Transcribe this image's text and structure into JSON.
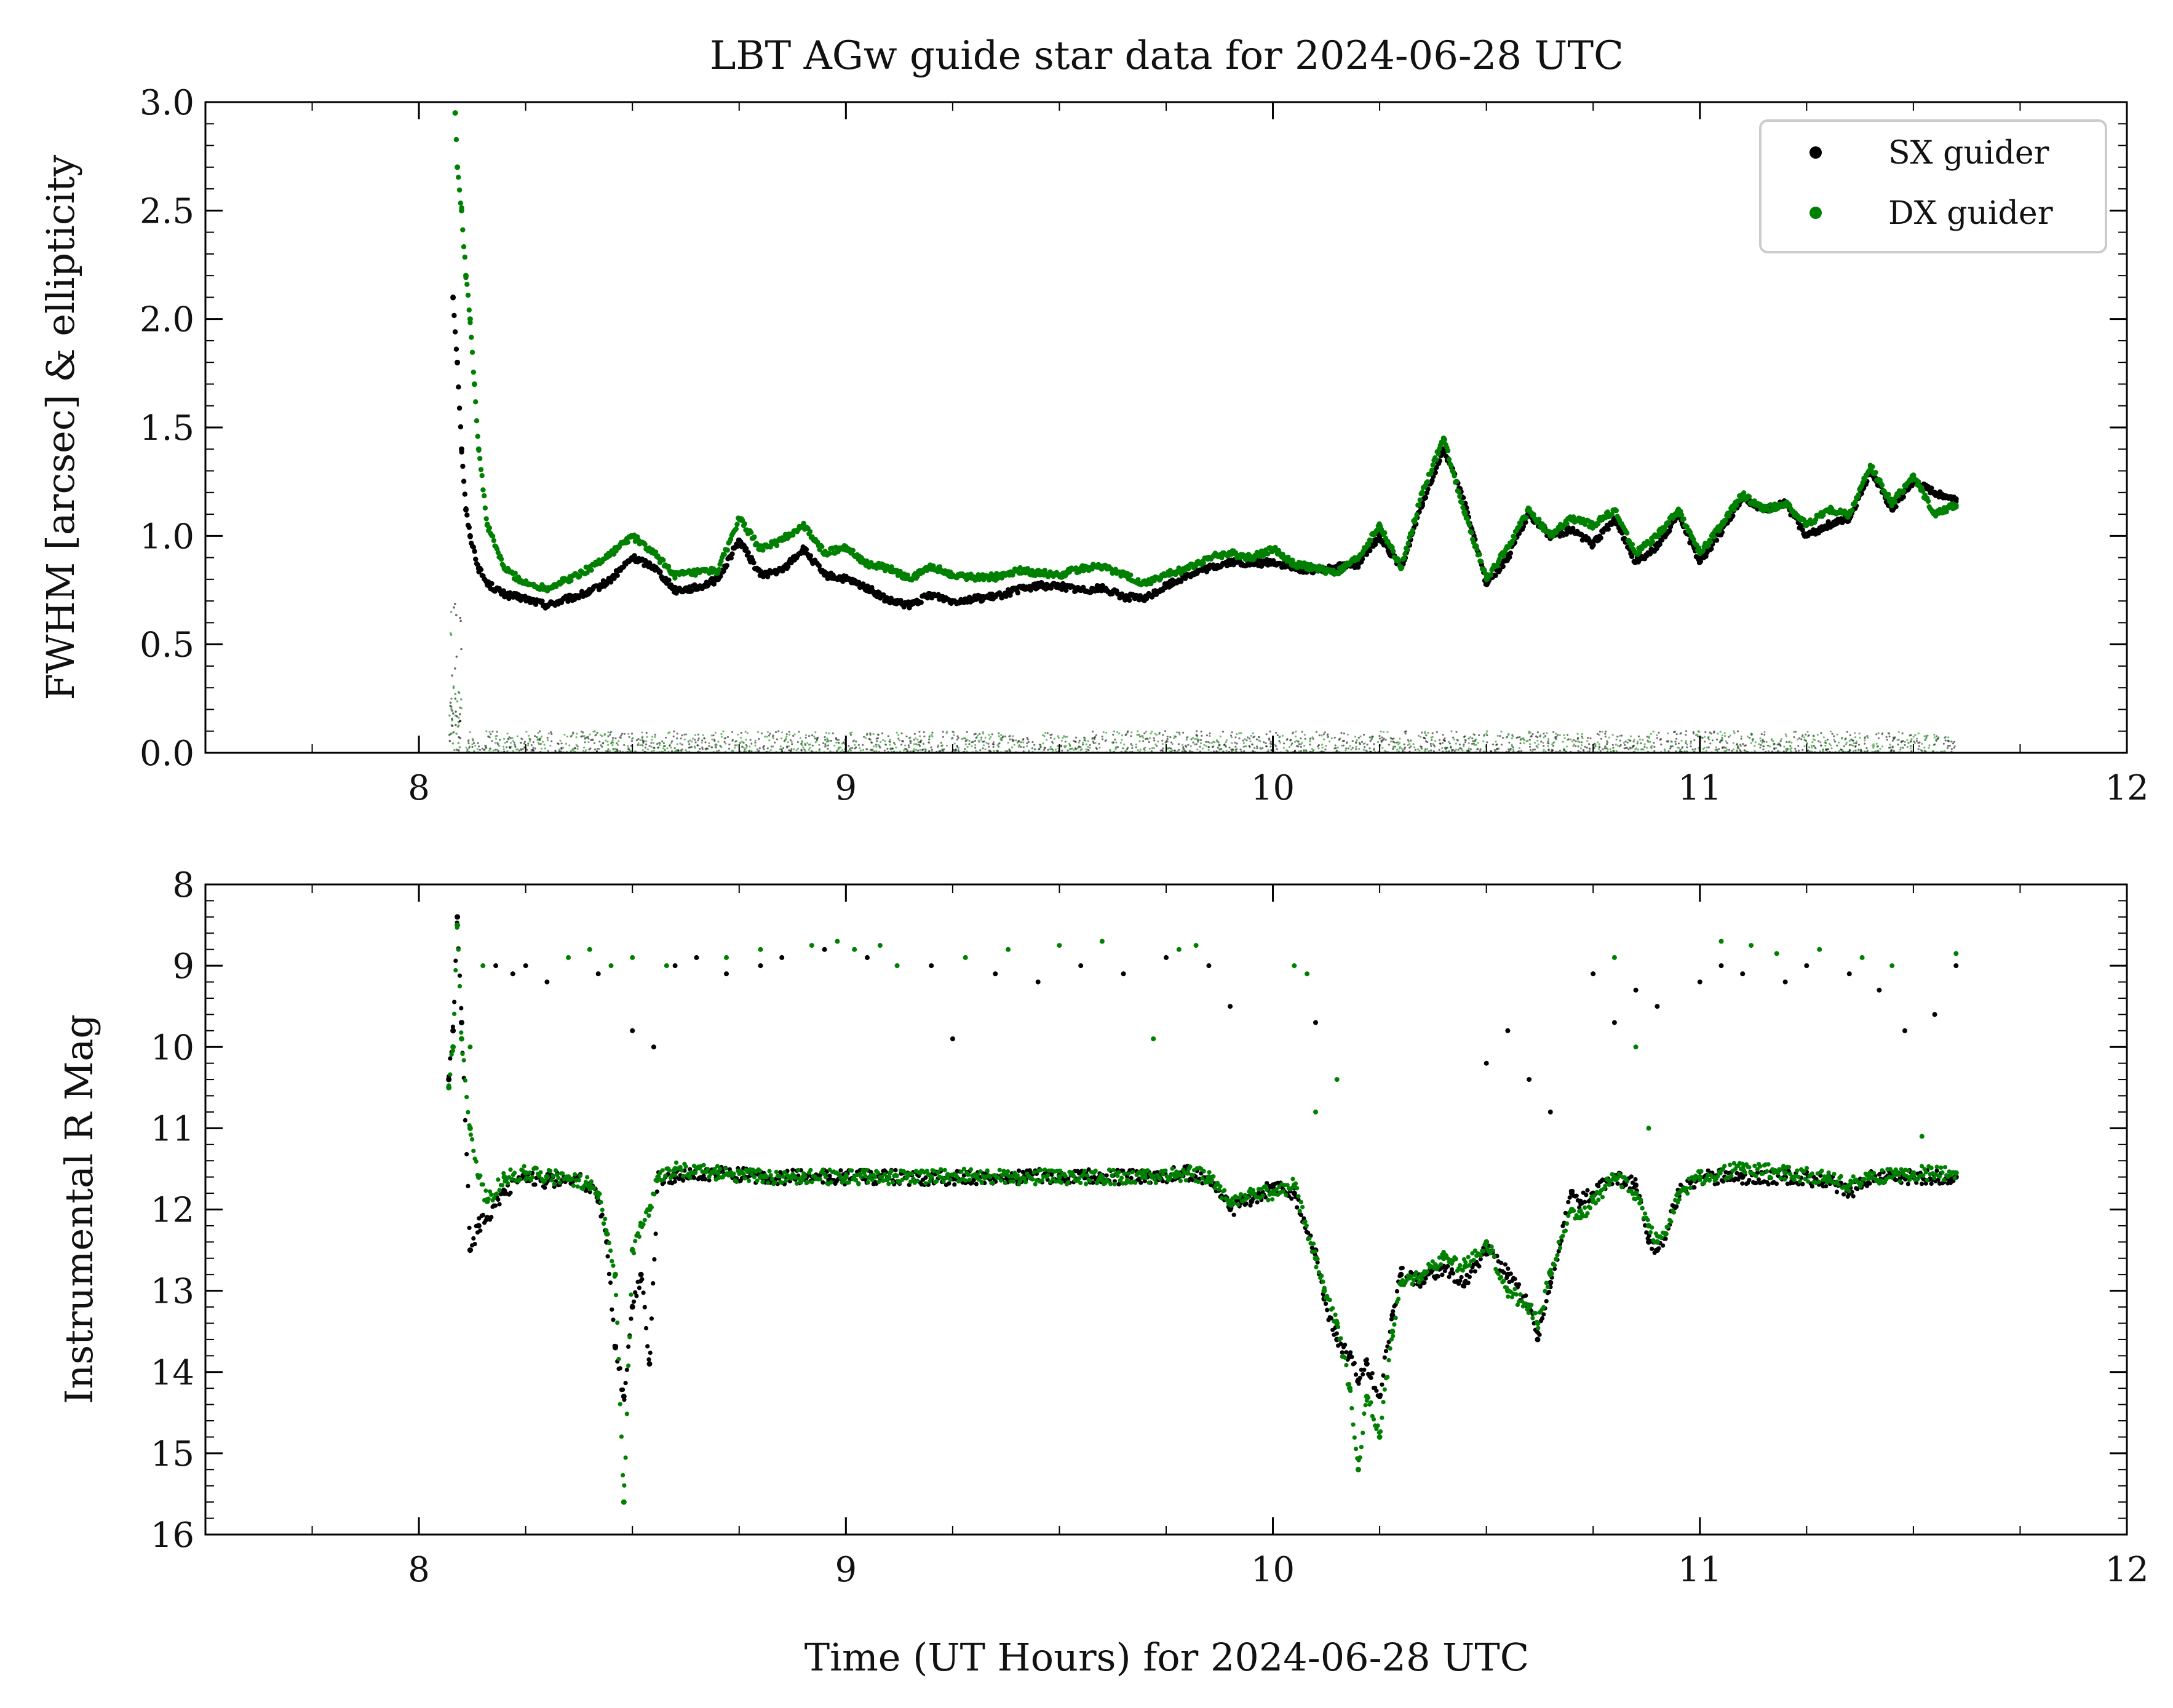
{
  "figure": {
    "title": "LBT AGw guide star data for 2024-06-28 UTC"
  },
  "series_styles": [
    {
      "name": "SX guider",
      "color": "#000000"
    },
    {
      "name": "DX guider",
      "color": "#008000"
    }
  ],
  "chart_data": [
    {
      "type": "scatter",
      "title": "LBT AGw guide star data for 2024-06-28 UTC",
      "xlabel": "",
      "ylabel": "FWHM [arcsec] & ellipticity",
      "xlim": [
        7.5,
        12
      ],
      "ylim": [
        0,
        3.0
      ],
      "x_ticks": [
        8,
        9,
        10,
        11,
        12
      ],
      "y_ticks": [
        0.0,
        0.5,
        1.0,
        1.5,
        2.0,
        2.5,
        3.0
      ],
      "y_tick_labels": [
        "0.0",
        "0.5",
        "1.0",
        "1.5",
        "2.0",
        "2.5",
        "3.0"
      ],
      "legend": "top-right",
      "grid": false,
      "series": [
        {
          "name": "SX guider",
          "color": "#000000",
          "x": [
            8.08,
            8.09,
            8.1,
            8.11,
            8.12,
            8.14,
            8.16,
            8.2,
            8.25,
            8.3,
            8.35,
            8.4,
            8.45,
            8.5,
            8.55,
            8.6,
            8.65,
            8.7,
            8.75,
            8.8,
            8.85,
            8.9,
            8.95,
            9.0,
            9.05,
            9.1,
            9.15,
            9.2,
            9.25,
            9.3,
            9.35,
            9.4,
            9.45,
            9.5,
            9.55,
            9.6,
            9.65,
            9.7,
            9.75,
            9.8,
            9.85,
            9.9,
            9.95,
            10.0,
            10.05,
            10.1,
            10.15,
            10.2,
            10.25,
            10.3,
            10.35,
            10.4,
            10.45,
            10.5,
            10.55,
            10.6,
            10.65,
            10.7,
            10.75,
            10.8,
            10.85,
            10.9,
            10.95,
            11.0,
            11.05,
            11.1,
            11.15,
            11.2,
            11.25,
            11.3,
            11.35,
            11.4,
            11.45,
            11.5,
            11.55,
            11.6
          ],
          "values": [
            2.1,
            1.8,
            1.4,
            1.12,
            1.0,
            0.85,
            0.78,
            0.73,
            0.71,
            0.68,
            0.71,
            0.74,
            0.8,
            0.9,
            0.86,
            0.75,
            0.76,
            0.8,
            0.98,
            0.82,
            0.84,
            0.94,
            0.82,
            0.8,
            0.76,
            0.7,
            0.68,
            0.73,
            0.7,
            0.71,
            0.72,
            0.75,
            0.77,
            0.77,
            0.75,
            0.76,
            0.72,
            0.71,
            0.77,
            0.82,
            0.85,
            0.88,
            0.87,
            0.88,
            0.85,
            0.84,
            0.86,
            0.87,
            1.0,
            0.85,
            1.15,
            1.4,
            1.15,
            0.78,
            0.9,
            1.1,
            1.0,
            1.03,
            0.96,
            1.08,
            0.88,
            0.95,
            1.1,
            0.88,
            1.02,
            1.18,
            1.12,
            1.15,
            1.0,
            1.05,
            1.08,
            1.3,
            1.12,
            1.25,
            1.2,
            1.17
          ]
        },
        {
          "name": "DX guider",
          "color": "#008000",
          "x": [
            8.085,
            8.09,
            8.1,
            8.11,
            8.12,
            8.13,
            8.14,
            8.16,
            8.2,
            8.25,
            8.3,
            8.35,
            8.4,
            8.45,
            8.5,
            8.55,
            8.6,
            8.65,
            8.7,
            8.75,
            8.8,
            8.85,
            8.9,
            8.95,
            9.0,
            9.05,
            9.1,
            9.15,
            9.2,
            9.25,
            9.3,
            9.35,
            9.4,
            9.45,
            9.5,
            9.55,
            9.6,
            9.65,
            9.7,
            9.75,
            9.8,
            9.85,
            9.9,
            9.95,
            10.0,
            10.05,
            10.1,
            10.15,
            10.2,
            10.25,
            10.3,
            10.35,
            10.4,
            10.45,
            10.5,
            10.55,
            10.6,
            10.65,
            10.7,
            10.75,
            10.8,
            10.85,
            10.9,
            10.95,
            11.0,
            11.05,
            11.1,
            11.15,
            11.2,
            11.25,
            11.3,
            11.35,
            11.4,
            11.45,
            11.5,
            11.55,
            11.6
          ],
          "values": [
            2.95,
            2.7,
            2.5,
            2.2,
            2.0,
            1.7,
            1.4,
            1.05,
            0.85,
            0.78,
            0.76,
            0.8,
            0.85,
            0.92,
            1.0,
            0.92,
            0.82,
            0.83,
            0.84,
            1.08,
            0.94,
            0.98,
            1.05,
            0.92,
            0.95,
            0.87,
            0.85,
            0.8,
            0.86,
            0.82,
            0.81,
            0.81,
            0.84,
            0.83,
            0.82,
            0.85,
            0.86,
            0.82,
            0.78,
            0.82,
            0.85,
            0.9,
            0.92,
            0.9,
            0.94,
            0.87,
            0.85,
            0.83,
            0.9,
            1.05,
            0.85,
            1.2,
            1.45,
            1.1,
            0.8,
            0.95,
            1.12,
            1.0,
            1.08,
            1.05,
            1.12,
            0.92,
            1.0,
            1.12,
            0.92,
            1.05,
            1.19,
            1.12,
            1.15,
            1.05,
            1.12,
            1.1,
            1.32,
            1.15,
            1.28,
            1.1,
            1.14
          ]
        }
      ],
      "ellipticity_band": {
        "x_start": 8.07,
        "x_end": 11.6,
        "values_range": [
          0.0,
          0.1
        ],
        "early_spike": [
          0.58,
          0.25
        ]
      }
    },
    {
      "type": "scatter",
      "title": "",
      "xlabel": "Time (UT Hours) for 2024-06-28 UTC",
      "ylabel": "Instrumental R Mag",
      "xlim": [
        7.5,
        12
      ],
      "ylim": [
        16,
        8
      ],
      "y_inverted": true,
      "x_ticks": [
        8,
        9,
        10,
        11,
        12
      ],
      "y_ticks": [
        8,
        9,
        10,
        11,
        12,
        13,
        14,
        15,
        16
      ],
      "grid": false,
      "series": [
        {
          "name": "SX guider",
          "color": "#000000",
          "x": [
            8.07,
            8.08,
            8.09,
            8.1,
            8.12,
            8.14,
            8.16,
            8.2,
            8.25,
            8.3,
            8.35,
            8.4,
            8.42,
            8.44,
            8.46,
            8.48,
            8.5,
            8.52,
            8.54,
            8.56,
            8.6,
            8.7,
            8.8,
            8.9,
            9.0,
            9.1,
            9.2,
            9.3,
            9.4,
            9.5,
            9.6,
            9.7,
            9.8,
            9.85,
            9.9,
            9.95,
            10.0,
            10.05,
            10.1,
            10.12,
            10.15,
            10.18,
            10.2,
            10.22,
            10.25,
            10.28,
            10.3,
            10.35,
            10.4,
            10.45,
            10.5,
            10.55,
            10.6,
            10.62,
            10.65,
            10.7,
            10.72,
            10.75,
            10.8,
            10.85,
            10.88,
            10.9,
            10.92,
            10.95,
            11.0,
            11.1,
            11.2,
            11.3,
            11.35,
            11.4,
            11.5,
            11.6
          ],
          "values": [
            10.4,
            9.8,
            8.4,
            9.7,
            12.5,
            12.2,
            12.1,
            11.8,
            11.6,
            11.65,
            11.6,
            11.7,
            11.9,
            12.4,
            13.7,
            14.3,
            13.2,
            12.8,
            13.9,
            11.6,
            11.6,
            11.55,
            11.6,
            11.6,
            11.6,
            11.6,
            11.62,
            11.6,
            11.6,
            11.58,
            11.6,
            11.6,
            11.55,
            11.62,
            12.0,
            11.9,
            11.7,
            11.8,
            12.5,
            13.1,
            13.6,
            13.8,
            14.1,
            13.9,
            14.3,
            13.3,
            12.8,
            12.9,
            12.7,
            12.9,
            12.5,
            12.8,
            13.2,
            13.6,
            12.9,
            11.8,
            11.9,
            11.8,
            11.6,
            11.7,
            12.4,
            12.5,
            12.3,
            11.8,
            11.6,
            11.6,
            11.6,
            11.65,
            11.8,
            11.6,
            11.6,
            11.6
          ],
          "outliers_x": [
            8.18,
            8.22,
            8.25,
            8.3,
            8.42,
            8.5,
            8.55,
            8.6,
            8.65,
            8.72,
            8.8,
            8.85,
            8.95,
            9.05,
            9.2,
            9.25,
            9.35,
            9.45,
            9.55,
            9.65,
            9.75,
            9.85,
            9.9,
            10.1,
            10.5,
            10.55,
            10.6,
            10.65,
            10.75,
            10.8,
            10.85,
            10.9,
            11.0,
            11.05,
            11.1,
            11.2,
            11.25,
            11.35,
            11.42,
            11.48,
            11.55,
            11.6
          ],
          "outliers_values": [
            9.0,
            9.1,
            9.0,
            9.2,
            9.1,
            9.8,
            10.0,
            9.0,
            8.9,
            9.1,
            9.0,
            8.9,
            8.8,
            8.9,
            9.0,
            9.9,
            9.1,
            9.2,
            9.0,
            9.1,
            8.9,
            9.0,
            9.5,
            9.7,
            10.2,
            9.8,
            10.4,
            10.8,
            9.1,
            9.7,
            9.3,
            9.5,
            9.2,
            9.0,
            9.1,
            9.2,
            9.0,
            9.1,
            9.3,
            9.8,
            9.6,
            9.0
          ]
        },
        {
          "name": "DX guider",
          "color": "#008000",
          "x": [
            8.07,
            8.08,
            8.09,
            8.1,
            8.12,
            8.14,
            8.16,
            8.2,
            8.25,
            8.3,
            8.35,
            8.4,
            8.42,
            8.44,
            8.46,
            8.48,
            8.5,
            8.52,
            8.54,
            8.56,
            8.6,
            8.7,
            8.8,
            8.9,
            9.0,
            9.1,
            9.2,
            9.3,
            9.4,
            9.5,
            9.6,
            9.7,
            9.8,
            9.85,
            9.9,
            9.95,
            10.0,
            10.05,
            10.1,
            10.12,
            10.15,
            10.18,
            10.2,
            10.22,
            10.25,
            10.28,
            10.3,
            10.35,
            10.4,
            10.45,
            10.5,
            10.55,
            10.6,
            10.62,
            10.65,
            10.7,
            10.72,
            10.75,
            10.8,
            10.85,
            10.88,
            10.9,
            10.92,
            10.95,
            11.0,
            11.1,
            11.2,
            11.3,
            11.35,
            11.4,
            11.5,
            11.6
          ],
          "values": [
            10.5,
            10.0,
            8.5,
            9.9,
            11.0,
            11.6,
            11.9,
            11.6,
            11.55,
            11.6,
            11.6,
            11.7,
            11.8,
            12.3,
            12.8,
            15.6,
            12.5,
            12.2,
            12.0,
            11.6,
            11.5,
            11.55,
            11.6,
            11.6,
            11.6,
            11.6,
            11.6,
            11.58,
            11.6,
            11.6,
            11.6,
            11.6,
            11.55,
            11.6,
            11.9,
            11.8,
            11.8,
            11.7,
            12.6,
            13.0,
            13.4,
            14.2,
            15.2,
            14.3,
            14.8,
            13.5,
            12.9,
            12.8,
            12.6,
            12.7,
            12.4,
            13.0,
            13.2,
            13.4,
            12.8,
            12.0,
            12.1,
            11.9,
            11.6,
            11.8,
            12.2,
            12.4,
            12.3,
            11.8,
            11.6,
            11.5,
            11.55,
            11.6,
            11.7,
            11.6,
            11.55,
            11.55
          ],
          "outliers_x": [
            8.12,
            8.15,
            8.35,
            8.4,
            8.45,
            8.5,
            8.58,
            8.72,
            8.8,
            8.92,
            8.98,
            9.02,
            9.08,
            9.12,
            9.28,
            9.38,
            9.5,
            9.6,
            9.72,
            9.78,
            9.82,
            10.05,
            10.08,
            10.1,
            10.15,
            10.8,
            10.85,
            10.88,
            11.05,
            11.12,
            11.18,
            11.28,
            11.38,
            11.45,
            11.52,
            11.6
          ],
          "outliers_values": [
            10.0,
            9.0,
            8.9,
            8.8,
            9.0,
            8.9,
            9.0,
            8.9,
            8.8,
            8.75,
            8.7,
            8.8,
            8.75,
            9.0,
            8.9,
            8.8,
            8.75,
            8.7,
            9.9,
            8.8,
            8.75,
            9.0,
            9.1,
            10.8,
            10.4,
            8.9,
            10.0,
            11.0,
            8.7,
            8.75,
            8.85,
            8.8,
            8.9,
            9.0,
            11.1,
            8.85
          ]
        }
      ]
    }
  ]
}
